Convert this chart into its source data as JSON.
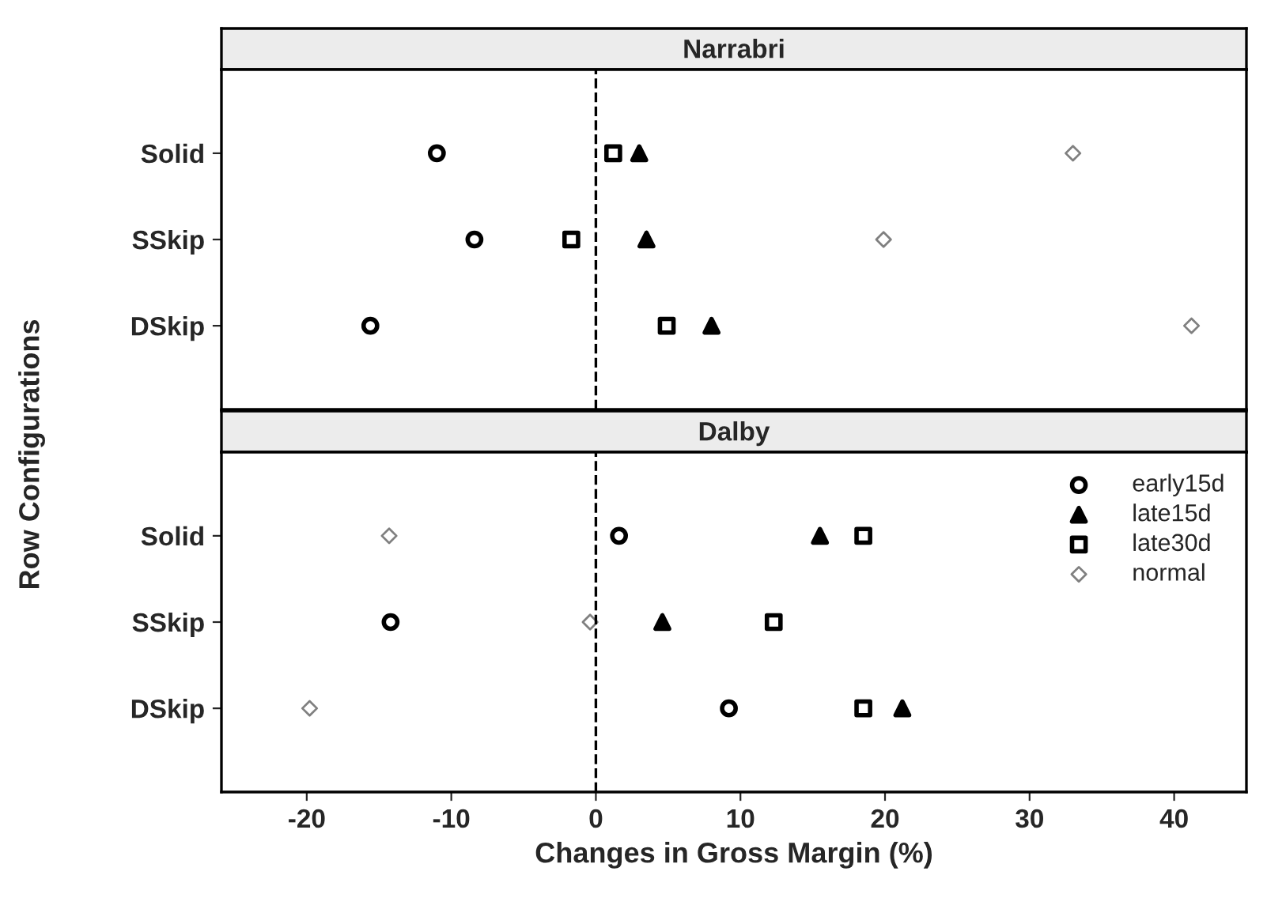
{
  "chart_data": [
    {
      "type": "scatter",
      "title": "Narrabri",
      "ylabel": "Row Configurations",
      "orientation": "horizontal",
      "categories": [
        "Solid",
        "SSkip",
        "DSkip"
      ],
      "xlim": [
        -25.9,
        45
      ],
      "xticks": [
        -20,
        -10,
        0,
        10,
        20,
        30,
        40
      ],
      "tick_labels": "y",
      "grid": false,
      "legend": false,
      "ref_lines": [
        {
          "axis": "x",
          "value": 0,
          "line_style": "dashed",
          "color": "#000000"
        }
      ],
      "series": [
        {
          "color": "#000000",
          "marker": "circle",
          "values": [
            -11.0,
            -8.4,
            -15.6
          ]
        },
        {
          "color": "#000000",
          "marker": "triangle",
          "values": [
            3.0,
            3.5,
            8.0
          ]
        },
        {
          "color": "#000000",
          "marker": "square",
          "values": [
            1.2,
            -1.7,
            4.9
          ]
        },
        {
          "color": "#808080",
          "marker": "diamond",
          "values": [
            33.0,
            19.9,
            41.2
          ]
        }
      ]
    },
    {
      "type": "scatter",
      "title": "Dalby",
      "xlabel": "Changes in Gross Margin (%)",
      "orientation": "horizontal",
      "categories": [
        "Solid",
        "SSkip",
        "DSkip"
      ],
      "xlim": [
        -25.9,
        45
      ],
      "xticks": [
        -20,
        -10,
        0,
        10,
        20,
        30,
        40
      ],
      "grid": false,
      "legend": "top right",
      "ref_lines": [
        {
          "axis": "x",
          "value": 0,
          "line_style": "dashed",
          "color": "#000000"
        }
      ],
      "series": [
        {
          "name": "early15d",
          "color": "#000000",
          "marker": "circle",
          "values": [
            1.6,
            -14.2,
            9.2
          ]
        },
        {
          "name": "late15d",
          "color": "#000000",
          "marker": "triangle",
          "values": [
            15.5,
            4.6,
            21.2
          ]
        },
        {
          "name": "late30d",
          "color": "#000000",
          "marker": "square",
          "values": [
            18.5,
            12.3,
            18.5
          ]
        },
        {
          "name": "normal",
          "color": "#808080",
          "marker": "diamond",
          "values": [
            -14.3,
            -0.4,
            -19.8
          ]
        }
      ]
    }
  ]
}
